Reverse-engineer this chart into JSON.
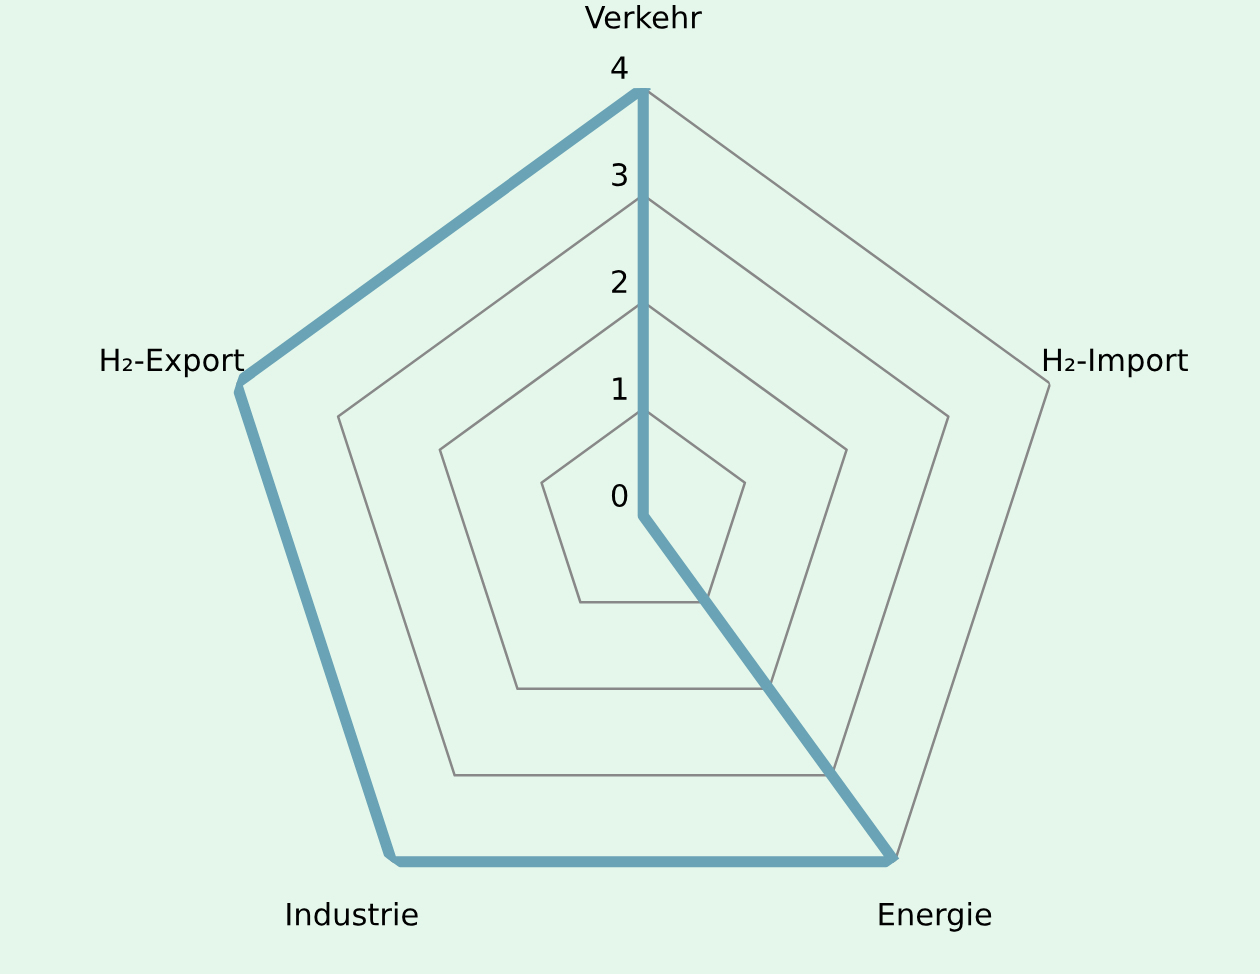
{
  "chart_data": {
    "type": "radar",
    "categories": [
      "Verkehr",
      "H₂-Import",
      "Energie",
      "Industrie",
      "H₂-Export"
    ],
    "series": [
      {
        "color": "#6aa3b6",
        "values": [
          4,
          0,
          4,
          4,
          4
        ]
      }
    ],
    "ylim": [
      0,
      4
    ],
    "yticks": [
      0,
      1,
      2,
      3,
      4
    ],
    "grid": true,
    "marker": "none",
    "line_style": "solid"
  }
}
